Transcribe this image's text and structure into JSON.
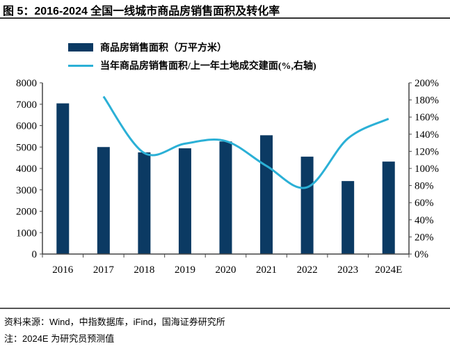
{
  "title": "图 5：2016-2024 全国一线城市商品房销售面积及转化率",
  "source": "资料来源：Wind，中指数据库，iFind，国海证券研究所",
  "note": "注：2024E 为研究员预测值",
  "chart_data": {
    "type": "bar+line",
    "title": "2016-2024 全国一线城市商品房销售面积及转化率",
    "categories": [
      "2016",
      "2017",
      "2018",
      "2019",
      "2020",
      "2021",
      "2022",
      "2023",
      "2024E"
    ],
    "series": [
      {
        "name": "商品房销售面积（万平方米）",
        "type": "bar",
        "axis": "left",
        "color": "#0b3a63",
        "values": [
          7040,
          5000,
          4750,
          4940,
          5260,
          5550,
          4550,
          3410,
          4320
        ]
      },
      {
        "name": "当年商品房销售面积/上一年土地成交建面(%,右轴)",
        "type": "line",
        "axis": "right",
        "color": "#2bb0d6",
        "values": [
          null,
          184,
          118,
          129,
          132,
          103,
          78,
          135,
          158
        ]
      }
    ],
    "y_left": {
      "range": [
        0,
        8000
      ],
      "ticks": [
        "0",
        "1000",
        "2000",
        "3000",
        "4000",
        "5000",
        "6000",
        "7000",
        "8000"
      ]
    },
    "y_right": {
      "range": [
        0,
        200
      ],
      "ticks": [
        "0%",
        "20%",
        "40%",
        "60%",
        "80%",
        "100%",
        "120%",
        "140%",
        "160%",
        "180%",
        "200%"
      ]
    },
    "legend": "top-center",
    "grid": false
  }
}
